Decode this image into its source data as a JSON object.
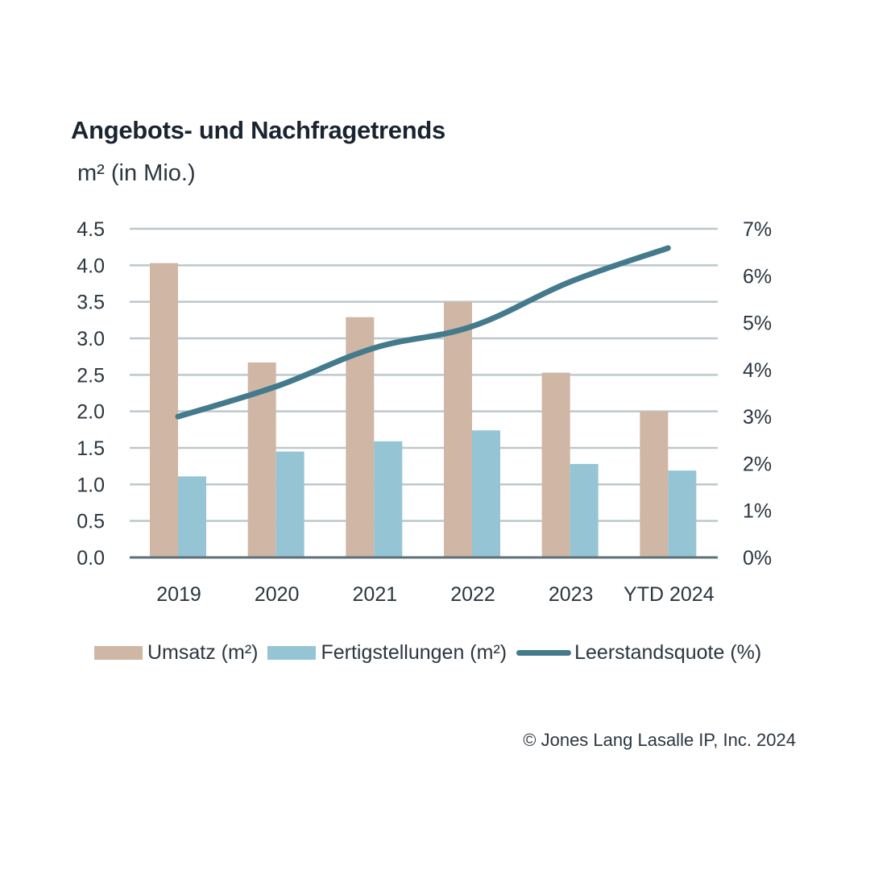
{
  "header": {
    "title": "Angebots- und Nachfragetrends",
    "subtitle": "m² (in Mio.)"
  },
  "footer": {
    "copyright": "© Jones Lang Lasalle IP, Inc. 2024"
  },
  "colors": {
    "umsatz": "#d0b6a4",
    "fertigstellungen": "#95c5d5",
    "leerstandsquote": "#437a8c",
    "grid": "#bcc8cb",
    "baseline": "#5e7179"
  },
  "chart_data": {
    "type": "bar",
    "title": "Angebots- und Nachfragetrends",
    "ylabel": "m² (in Mio.)",
    "y2label": "Leerstandsquote (%)",
    "categories": [
      "2019",
      "2020",
      "2021",
      "2022",
      "2023",
      "YTD 2024"
    ],
    "ylim": [
      0,
      4.5
    ],
    "y2lim": [
      0,
      7
    ],
    "yticks": [
      "0.0",
      "0.5",
      "1.0",
      "1.5",
      "2.0",
      "2.5",
      "3.0",
      "3.5",
      "4.0",
      "4.5"
    ],
    "y2ticks": [
      "0%",
      "1%",
      "2%",
      "3%",
      "4%",
      "5%",
      "6%",
      "7%"
    ],
    "grid": true,
    "legend_position": "bottom",
    "series": [
      {
        "name": "Umsatz (m²)",
        "type": "bar",
        "axis": "left",
        "values": [
          4.03,
          2.67,
          3.29,
          3.5,
          2.53,
          2.0
        ]
      },
      {
        "name": "Fertigstellungen (m²)",
        "type": "bar",
        "axis": "left",
        "values": [
          1.11,
          1.45,
          1.59,
          1.74,
          1.28,
          1.19
        ]
      },
      {
        "name": "Leerstandsquote (%)",
        "type": "line",
        "axis": "right",
        "values": [
          3.0,
          3.64,
          4.46,
          4.92,
          5.87,
          6.59
        ]
      }
    ]
  }
}
